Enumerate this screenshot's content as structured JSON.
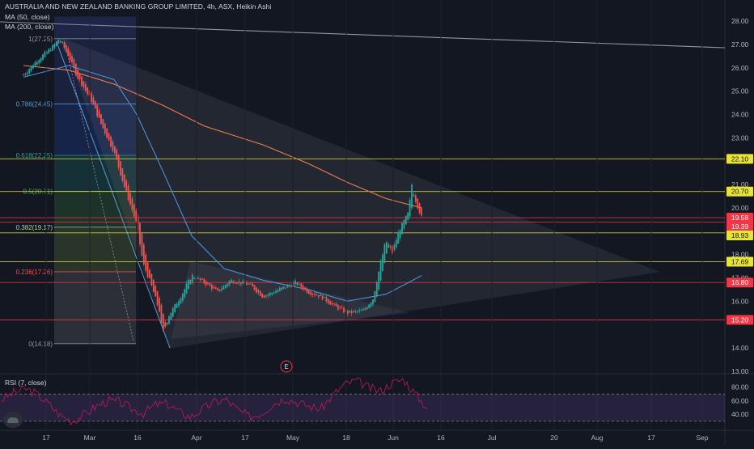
{
  "header": {
    "title": "AUSTRALIA AND NEW ZEALAND BANKING GROUP LIMITED, 4h, ASX, Heikin Ashi",
    "ma50": "MA (50, close)",
    "ma200": "MA (200, close)"
  },
  "rsi_panel": {
    "label": "RSI (7, close)",
    "axis_ticks": [
      "80.00",
      "60.00",
      "40.00"
    ]
  },
  "earnings_marker": "E",
  "colors": {
    "background": "#131722",
    "up": "#26a69a",
    "down": "#ef5350",
    "ma50": "#4a90d9",
    "ma200": "#f57c4a",
    "trendline": "#5b9bd5",
    "rsi_line": "#c2185b",
    "rsi_band": "#7e57c2",
    "yellow_level": "#e8e337",
    "red_level": "#f23645"
  },
  "chart_data": {
    "type": "candlestick",
    "title": "AUSTRALIA AND NEW ZEALAND BANKING GROUP LIMITED, 4h, ASX, Heikin Ashi",
    "ylim": [
      12.8,
      28.8
    ],
    "y_ticks": [
      "28.00",
      "27.00",
      "26.00",
      "25.00",
      "24.00",
      "23.00",
      "21.00",
      "20.00",
      "18.00",
      "17.00",
      "16.00",
      "14.00",
      "13.00"
    ],
    "x_ticks": [
      "17",
      "Mar",
      "16",
      "Apr",
      "17",
      "May",
      "18",
      "Jun",
      "16",
      "Jul",
      "20",
      "Aug",
      "17",
      "Sep"
    ],
    "fibonacci": [
      {
        "label": "1(27.25)",
        "value": 27.25,
        "color": "#9598a1"
      },
      {
        "label": "0.786(24.45)",
        "value": 24.45,
        "color": "#5b9bd5"
      },
      {
        "label": "0.618(22.25)",
        "value": 22.25,
        "color": "#26a69a"
      },
      {
        "label": "0.5(20.71)",
        "value": 20.71,
        "color": "#4caf50"
      },
      {
        "label": "0.382(19.17)",
        "value": 19.17,
        "color": "#a5d6a7"
      },
      {
        "label": "0.236(17.26)",
        "value": 17.26,
        "color": "#ef5350"
      },
      {
        "label": "0(14.18)",
        "value": 14.18,
        "color": "#9598a1"
      }
    ],
    "levels": [
      {
        "label": "22.10",
        "value": 22.1,
        "color": "#e8e337"
      },
      {
        "label": "20.70",
        "value": 20.7,
        "color": "#e8e337"
      },
      {
        "label": "19.58",
        "value": 19.58,
        "color": "#f23645"
      },
      {
        "label": "19.39",
        "value": 19.39,
        "color": "#f23645"
      },
      {
        "label": "18.93",
        "value": 18.93,
        "color": "#e8e337"
      },
      {
        "label": "17.69",
        "value": 17.69,
        "color": "#e8e337"
      },
      {
        "label": "16.80",
        "value": 16.8,
        "color": "#f23645"
      },
      {
        "label": "15.20",
        "value": 15.2,
        "color": "#f23645"
      }
    ],
    "price_path": [
      {
        "x": "Feb 10",
        "y": 25.7
      },
      {
        "x": "Feb 14",
        "y": 26.3
      },
      {
        "x": "Feb 19",
        "y": 26.9
      },
      {
        "x": "Feb 21",
        "y": 27.25
      },
      {
        "x": "Feb 24",
        "y": 26.5
      },
      {
        "x": "Feb 26",
        "y": 25.8
      },
      {
        "x": "Mar 2",
        "y": 24.6
      },
      {
        "x": "Mar 5",
        "y": 23.6
      },
      {
        "x": "Mar 9",
        "y": 22.4
      },
      {
        "x": "Mar 12",
        "y": 21.0
      },
      {
        "x": "Mar 16",
        "y": 19.3
      },
      {
        "x": "Mar 18",
        "y": 17.6
      },
      {
        "x": "Mar 20",
        "y": 16.9
      },
      {
        "x": "Mar 23",
        "y": 15.6
      },
      {
        "x": "Mar 24",
        "y": 14.6
      },
      {
        "x": "Mar 26",
        "y": 15.4
      },
      {
        "x": "Mar 30",
        "y": 16.3
      },
      {
        "x": "Apr 2",
        "y": 17.1
      },
      {
        "x": "Apr 6",
        "y": 16.8
      },
      {
        "x": "Apr 10",
        "y": 16.4
      },
      {
        "x": "Apr 14",
        "y": 16.9
      },
      {
        "x": "Apr 20",
        "y": 16.7
      },
      {
        "x": "Apr 24",
        "y": 16.2
      },
      {
        "x": "Apr 29",
        "y": 16.5
      },
      {
        "x": "May 4",
        "y": 16.8
      },
      {
        "x": "May 8",
        "y": 16.4
      },
      {
        "x": "May 12",
        "y": 16.2
      },
      {
        "x": "May 16",
        "y": 15.8
      },
      {
        "x": "May 20",
        "y": 15.5
      },
      {
        "x": "May 25",
        "y": 15.6
      },
      {
        "x": "May 28",
        "y": 16.1
      },
      {
        "x": "May 30",
        "y": 17.4
      },
      {
        "x": "Jun 1",
        "y": 18.6
      },
      {
        "x": "Jun 3",
        "y": 18.1
      },
      {
        "x": "Jun 5",
        "y": 19.0
      },
      {
        "x": "Jun 8",
        "y": 19.8
      },
      {
        "x": "Jun 9",
        "y": 21.0
      },
      {
        "x": "Jun 10",
        "y": 20.4
      },
      {
        "x": "Jun 12",
        "y": 19.6
      }
    ],
    "ma50_path": [
      {
        "x": "Feb 10",
        "y": 25.6
      },
      {
        "x": "Feb 24",
        "y": 26.1
      },
      {
        "x": "Mar 9",
        "y": 25.5
      },
      {
        "x": "Mar 16",
        "y": 24.0
      },
      {
        "x": "Mar 24",
        "y": 21.6
      },
      {
        "x": "Apr 2",
        "y": 18.8
      },
      {
        "x": "Apr 12",
        "y": 17.4
      },
      {
        "x": "Apr 24",
        "y": 16.9
      },
      {
        "x": "May 8",
        "y": 16.5
      },
      {
        "x": "May 20",
        "y": 16.0
      },
      {
        "x": "Jun 1",
        "y": 16.3
      },
      {
        "x": "Jun 8",
        "y": 16.8
      },
      {
        "x": "Jun 12",
        "y": 17.1
      }
    ],
    "ma200_path": [
      {
        "x": "Feb 10",
        "y": 26.1
      },
      {
        "x": "Feb 24",
        "y": 25.9
      },
      {
        "x": "Mar 9",
        "y": 25.3
      },
      {
        "x": "Mar 24",
        "y": 24.4
      },
      {
        "x": "Apr 6",
        "y": 23.5
      },
      {
        "x": "Apr 24",
        "y": 22.7
      },
      {
        "x": "May 8",
        "y": 21.9
      },
      {
        "x": "May 20",
        "y": 21.1
      },
      {
        "x": "Jun 1",
        "y": 20.4
      },
      {
        "x": "Jun 12",
        "y": 20.0
      }
    ],
    "rsi": [
      62,
      72,
      78,
      70,
      55,
      38,
      30,
      40,
      52,
      60,
      58,
      48,
      42,
      54,
      56,
      44,
      36,
      48,
      58,
      62,
      46,
      36,
      42,
      56,
      64,
      58,
      52,
      48,
      68,
      84,
      90,
      80,
      74,
      86,
      92,
      70,
      50
    ]
  }
}
